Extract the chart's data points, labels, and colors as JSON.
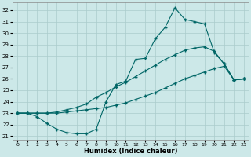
{
  "xlabel": "Humidex (Indice chaleur)",
  "bg_color": "#cce8e8",
  "grid_color": "#aacccc",
  "line_color": "#006666",
  "xlim": [
    -0.5,
    23.5
  ],
  "ylim": [
    20.7,
    32.7
  ],
  "xticks": [
    0,
    1,
    2,
    3,
    4,
    5,
    6,
    7,
    8,
    9,
    10,
    11,
    12,
    13,
    14,
    15,
    16,
    17,
    18,
    19,
    20,
    21,
    22,
    23
  ],
  "yticks": [
    21,
    22,
    23,
    24,
    25,
    26,
    27,
    28,
    29,
    30,
    31,
    32
  ],
  "line1_x": [
    0,
    1,
    2,
    3,
    4,
    5,
    6,
    7,
    8,
    9,
    10,
    11,
    12,
    13,
    14,
    15,
    16,
    17,
    18,
    19,
    20,
    21,
    22,
    23
  ],
  "line1_y": [
    23.0,
    23.0,
    22.7,
    22.1,
    21.6,
    21.3,
    21.2,
    21.2,
    21.6,
    24.0,
    25.5,
    25.8,
    27.7,
    27.8,
    29.5,
    30.5,
    32.2,
    31.2,
    31.0,
    30.8,
    28.3,
    27.3,
    25.9,
    26.0
  ],
  "line2_x": [
    0,
    1,
    2,
    3,
    4,
    5,
    6,
    7,
    8,
    9,
    10,
    11,
    12,
    13,
    14,
    15,
    16,
    17,
    18,
    19,
    20,
    21,
    22,
    23
  ],
  "line2_y": [
    23.0,
    23.0,
    23.0,
    23.0,
    23.1,
    23.3,
    23.5,
    23.8,
    24.4,
    24.8,
    25.3,
    25.7,
    26.2,
    26.7,
    27.2,
    27.7,
    28.1,
    28.5,
    28.7,
    28.8,
    28.4,
    27.3,
    25.9,
    26.0
  ],
  "line3_x": [
    0,
    1,
    2,
    3,
    4,
    5,
    6,
    7,
    8,
    9,
    10,
    11,
    12,
    13,
    14,
    15,
    16,
    17,
    18,
    19,
    20,
    21,
    22,
    23
  ],
  "line3_y": [
    23.0,
    23.0,
    23.0,
    23.0,
    23.0,
    23.1,
    23.2,
    23.3,
    23.4,
    23.5,
    23.7,
    23.9,
    24.2,
    24.5,
    24.8,
    25.2,
    25.6,
    26.0,
    26.3,
    26.6,
    26.9,
    27.1,
    25.9,
    26.0
  ]
}
